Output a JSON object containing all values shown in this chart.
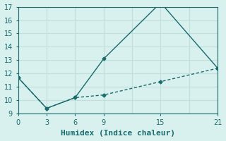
{
  "xlabel": "Humidex (Indice chaleur)",
  "line1_x": [
    0,
    3,
    6,
    9,
    15,
    21
  ],
  "line1_y": [
    11.7,
    9.4,
    10.2,
    13.1,
    17.3,
    12.4
  ],
  "line2_x": [
    0,
    3,
    6,
    9,
    15,
    21
  ],
  "line2_y": [
    11.7,
    9.4,
    10.2,
    10.4,
    11.4,
    12.4
  ],
  "line_color": "#1a6b6b",
  "bg_color": "#d8f0ee",
  "grid_color": "#c0deda",
  "xlim": [
    0,
    21
  ],
  "ylim": [
    9,
    17
  ],
  "xticks": [
    0,
    3,
    6,
    9,
    15,
    21
  ],
  "yticks": [
    9,
    10,
    11,
    12,
    13,
    14,
    15,
    16,
    17
  ],
  "marker": "D",
  "markersize": 2.5,
  "linewidth": 1.0,
  "xlabel_fontsize": 8,
  "tick_fontsize": 7
}
